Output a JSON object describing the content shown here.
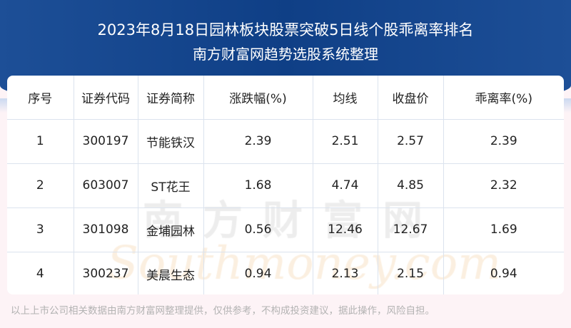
{
  "header": {
    "title": "2023年8月18日园林板块股票突破5日线个股乖离率排名",
    "subtitle": "南方财富网趋势选股系统整理"
  },
  "watermark": {
    "cn": "南方财富网",
    "en": "Southmoney.com"
  },
  "table": {
    "columns": [
      "序号",
      "证券代码",
      "证券简称",
      "涨跌幅(%)",
      "均线",
      "收盘价",
      "乖离率(%)"
    ],
    "rows": [
      [
        "1",
        "300197",
        "节能铁汉",
        "2.39",
        "2.51",
        "2.57",
        "2.39"
      ],
      [
        "2",
        "603007",
        "ST花王",
        "1.68",
        "4.74",
        "4.85",
        "2.32"
      ],
      [
        "3",
        "301098",
        "金埔园林",
        "0.56",
        "12.46",
        "12.67",
        "1.69"
      ],
      [
        "4",
        "300237",
        "美晨生态",
        "0.94",
        "2.13",
        "2.15",
        "0.94"
      ]
    ]
  },
  "footer": {
    "disclaimer": "以上上市公司相关数据由南方财富网整理提供，仅供参考，不构成投资建议，据此操作，风险自担。"
  }
}
